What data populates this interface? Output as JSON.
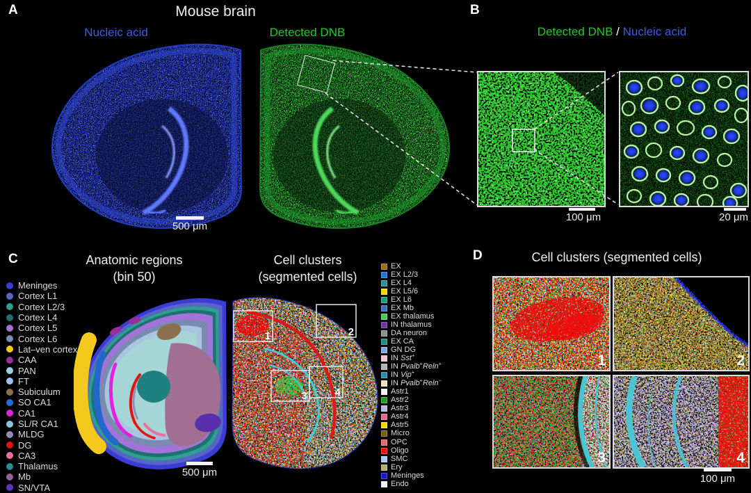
{
  "panel_a": {
    "label": "A",
    "title": "Mouse brain",
    "channel_left": {
      "text": "Nucleic acid",
      "color": "#3D5BE8"
    },
    "channel_right": {
      "text": "Detected DNB",
      "color": "#21CC21"
    },
    "scale_bar": "500 μm"
  },
  "panel_b": {
    "label": "B",
    "title_parts": [
      {
        "text": "Detected DNB",
        "color": "#21CC21"
      },
      {
        "text": " / ",
        "color": "#FFFFFF"
      },
      {
        "text": "Nucleic acid",
        "color": "#3D5BE8"
      }
    ],
    "scale_bar_left": "100 μm",
    "scale_bar_right": "20 μm"
  },
  "panel_c": {
    "label": "C",
    "left_title_line1": "Anatomic regions",
    "left_title_line2": "(bin 50)",
    "right_title_line1": "Cell clusters",
    "right_title_line2": "(segmented cells)",
    "scale_bar": "500 μm",
    "inset_boxes": [
      "1",
      "2",
      "3",
      "4"
    ]
  },
  "panel_d": {
    "label": "D",
    "title": "Cell clusters (segmented cells)",
    "tiles": [
      "1",
      "2",
      "3",
      "4"
    ],
    "scale_bar": "100 μm"
  },
  "legend_anatomic": {
    "title": "Anatomic regions",
    "items": [
      {
        "label": "Meninges",
        "color": "#3B3BD6"
      },
      {
        "label": "Cortex L1",
        "color": "#5566C4"
      },
      {
        "label": "Cortex L2/3",
        "color": "#2F9E8F"
      },
      {
        "label": "Cortex L4",
        "color": "#1F7070"
      },
      {
        "label": "Cortex L5",
        "color": "#A273D9"
      },
      {
        "label": "Cortex L6",
        "color": "#7A8BB0"
      },
      {
        "label": "Lat–ven cortex",
        "color": "#F5C81E"
      },
      {
        "label": "CAA",
        "color": "#9B2D9B"
      },
      {
        "label": "PAN",
        "color": "#A0CDE0"
      },
      {
        "label": "FT",
        "color": "#9CC2F0"
      },
      {
        "label": "Subiculum",
        "color": "#8B6F4F"
      },
      {
        "label": "SO CA1",
        "color": "#1E6FD6"
      },
      {
        "label": "CA1",
        "color": "#E321E3"
      },
      {
        "label": "SL/R CA1",
        "color": "#85C6DC"
      },
      {
        "label": "MLDG",
        "color": "#8F8FB4"
      },
      {
        "label": "DG",
        "color": "#E51212"
      },
      {
        "label": "CA3",
        "color": "#EE6F9E"
      },
      {
        "label": "Thalamus",
        "color": "#2A8C8C"
      },
      {
        "label": "Mb",
        "color": "#96639C"
      },
      {
        "label": "SN/VTA",
        "color": "#5A35C0"
      }
    ]
  },
  "legend_clusters": {
    "title": "Cell clusters",
    "items": [
      {
        "label": "EX",
        "color": "#9C6F12"
      },
      {
        "label": "EX L2/3",
        "color": "#1E78D2"
      },
      {
        "label": "EX L4",
        "color": "#2E8C9E"
      },
      {
        "label": "EX L5/6",
        "color": "#F5D800"
      },
      {
        "label": "EX L6",
        "color": "#17A085"
      },
      {
        "label": "EX Mb",
        "color": "#3F6FC0"
      },
      {
        "label": "EX thalamus",
        "color": "#4FC85A"
      },
      {
        "label": "IN thalamus",
        "color": "#7030A0"
      },
      {
        "label": "DA neuron",
        "color": "#8F8F8F"
      },
      {
        "label": "EX CA",
        "color": "#1F8F85"
      },
      {
        "label": "GN DG",
        "color": "#7FA8DC"
      },
      {
        "label": "IN Sst+",
        "color": "#EAC9D4",
        "parts": [
          [
            "IN ",
            "n"
          ],
          [
            "Sst",
            "i"
          ],
          [
            "+",
            "sup"
          ]
        ]
      },
      {
        "label": "IN Pvalb+Reln+",
        "color": "#B2B2B2",
        "parts": [
          [
            "IN ",
            "n"
          ],
          [
            "Pvalb",
            "i"
          ],
          [
            "+",
            "sup"
          ],
          [
            "Reln",
            "i"
          ],
          [
            "+",
            "sup"
          ]
        ]
      },
      {
        "label": "IN Vip+",
        "color": "#2E8FA8",
        "parts": [
          [
            "IN ",
            "n"
          ],
          [
            "Vip",
            "i"
          ],
          [
            "+",
            "sup"
          ]
        ]
      },
      {
        "label": "IN Pvalb+Reln−",
        "color": "#F0E2BE",
        "parts": [
          [
            "IN ",
            "n"
          ],
          [
            "Pvalb",
            "i"
          ],
          [
            "+",
            "sup"
          ],
          [
            "Reln",
            "i"
          ],
          [
            "−",
            "sup"
          ]
        ]
      },
      {
        "label": "Astr1",
        "color": "#F2F2F2"
      },
      {
        "label": "Astr2",
        "color": "#1FA31F"
      },
      {
        "label": "Astr3",
        "color": "#B7B7E3"
      },
      {
        "label": "Astr4",
        "color": "#EF6390"
      },
      {
        "label": "Astr5",
        "color": "#F5D800"
      },
      {
        "label": "Micro",
        "color": "#7A5E12"
      },
      {
        "label": "OPC",
        "color": "#E06A6A"
      },
      {
        "label": "Oligo",
        "color": "#EE1111"
      },
      {
        "label": "SMC",
        "color": "#AFCBF1"
      },
      {
        "label": "Ery",
        "color": "#B3B062"
      },
      {
        "label": "Meninges",
        "color": "#1818C8"
      },
      {
        "label": "Endo",
        "color": "#EDF2F4"
      }
    ]
  }
}
